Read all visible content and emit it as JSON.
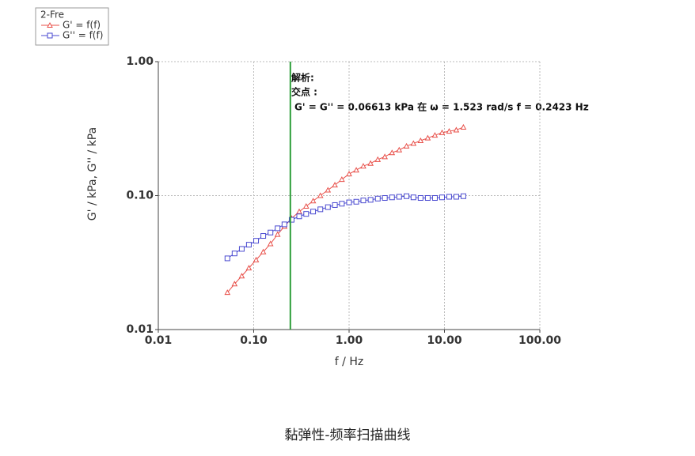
{
  "chart_data": {
    "type": "line",
    "legend_title": "2-Fre",
    "x_label": "f / Hz",
    "y_label": "G' / kPa, G'' / kPa",
    "annotations": [
      "解析:",
      "交点 :",
      "G' = G'' = 0.06613 kPa   在   ω = 1.523 rad/s   f = 0.2423 Hz"
    ],
    "log_x": true,
    "log_y": true,
    "grid": true,
    "xlim": [
      0.01,
      100
    ],
    "ylim": [
      0.01,
      1
    ],
    "xticks": [
      {
        "value": 0.01,
        "label": "0.01"
      },
      {
        "value": 0.1,
        "label": "0.10"
      },
      {
        "value": 1,
        "label": "1.00"
      },
      {
        "value": 10,
        "label": "10.00"
      },
      {
        "value": 100,
        "label": "100.00"
      }
    ],
    "yticks": [
      {
        "value": 0.01,
        "label": "0.01"
      },
      {
        "value": 0.1,
        "label": "0.10"
      },
      {
        "value": 1,
        "label": "1.00"
      }
    ],
    "vline": {
      "x": 0.2423,
      "color": "#2e9e3a"
    },
    "x": [
      0.053,
      0.063,
      0.075,
      0.089,
      0.106,
      0.126,
      0.15,
      0.178,
      0.21,
      0.25,
      0.3,
      0.355,
      0.42,
      0.5,
      0.6,
      0.71,
      0.84,
      1.0,
      1.19,
      1.41,
      1.68,
      2.0,
      2.37,
      2.82,
      3.35,
      4.0,
      4.73,
      5.62,
      6.68,
      7.94,
      9.44,
      11.2,
      13.3,
      15.8
    ],
    "series": [
      {
        "name": "G' = f(f)",
        "color": "#e8504a",
        "marker": "triangle",
        "values": [
          0.0189,
          0.0219,
          0.0251,
          0.0288,
          0.0331,
          0.038,
          0.0437,
          0.0513,
          0.0589,
          0.0676,
          0.0759,
          0.0832,
          0.0912,
          0.1,
          0.11,
          0.12,
          0.132,
          0.145,
          0.155,
          0.166,
          0.174,
          0.186,
          0.195,
          0.209,
          0.219,
          0.234,
          0.245,
          0.257,
          0.269,
          0.282,
          0.295,
          0.302,
          0.309,
          0.324
        ]
      },
      {
        "name": "G'' = f(f)",
        "color": "#4a4ad0",
        "marker": "square",
        "values": [
          0.034,
          0.037,
          0.04,
          0.043,
          0.046,
          0.05,
          0.053,
          0.057,
          0.061,
          0.066,
          0.07,
          0.073,
          0.076,
          0.079,
          0.082,
          0.085,
          0.087,
          0.089,
          0.09,
          0.092,
          0.093,
          0.095,
          0.096,
          0.097,
          0.098,
          0.099,
          0.097,
          0.096,
          0.096,
          0.096,
          0.097,
          0.098,
          0.098,
          0.099
        ]
      }
    ]
  },
  "caption": "黏弹性-频率扫描曲线"
}
